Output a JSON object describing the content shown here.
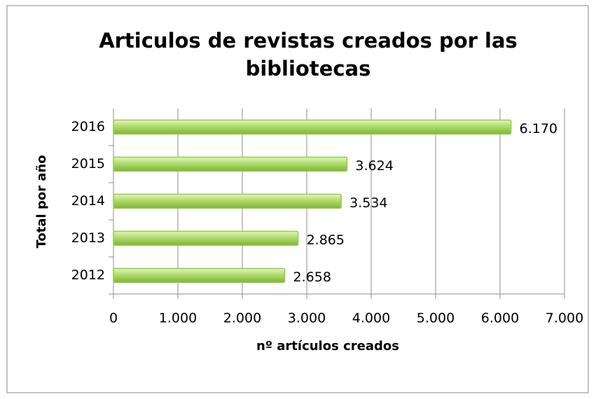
{
  "chart_data": {
    "type": "bar",
    "orientation": "horizontal",
    "title": "Articulos de revistas creados por las bibliotecas",
    "xlabel": "nº artículos creados",
    "ylabel": "Total por año",
    "categories": [
      "2012",
      "2013",
      "2014",
      "2015",
      "2016"
    ],
    "values": [
      2658,
      2865,
      3534,
      3624,
      6170
    ],
    "value_labels": [
      "2.658",
      "2.865",
      "3.534",
      "3.624",
      "6.170"
    ],
    "color": "#92cd47",
    "xlim": [
      0,
      7000
    ],
    "xticks": [
      0,
      {
        "value": 1000,
        "label": "1.000"
      },
      {
        "value": 2000,
        "label": "2.000"
      },
      {
        "value": 3000,
        "label": "3.000"
      },
      {
        "value": 4000,
        "label": "4.000"
      },
      {
        "value": 5000,
        "label": "5.000"
      },
      {
        "value": 6000,
        "label": "6.000"
      },
      {
        "value": 7000,
        "label": "7.000"
      }
    ],
    "grid": true
  }
}
